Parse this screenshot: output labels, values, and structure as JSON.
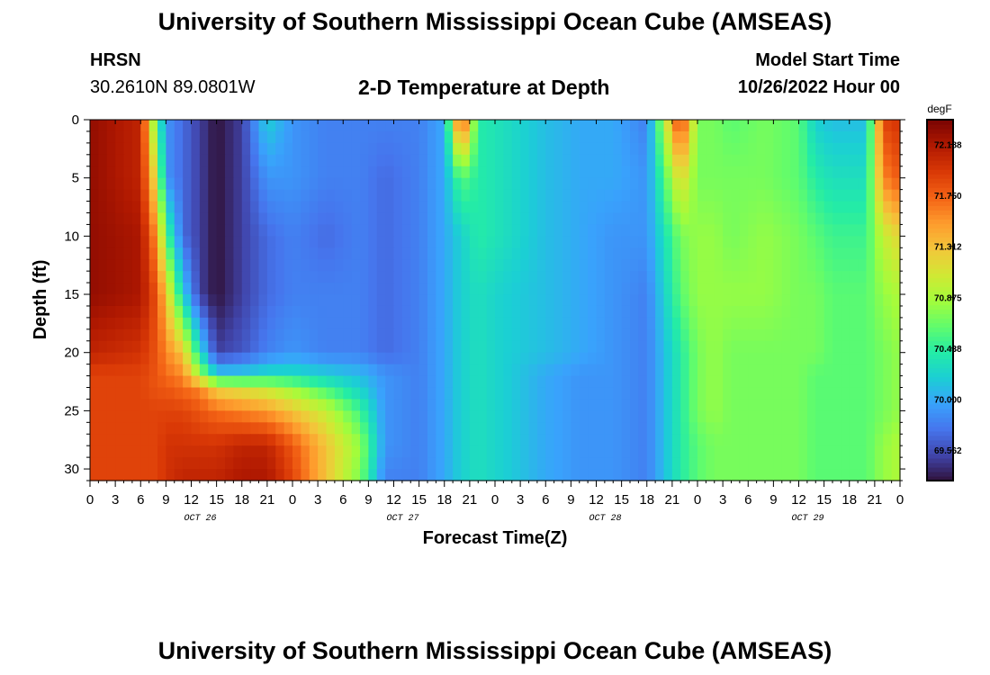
{
  "header": {
    "title": "University of Southern Mississippi Ocean Cube (AMSEAS)",
    "station_name": "HRSN",
    "station_coords": "30.2610N  89.0801W",
    "subtitle": "2-D Temperature at Depth",
    "model_start_label": "Model Start Time",
    "model_start_value": "10/26/2022 Hour 00"
  },
  "footer": {
    "title": "University of Southern Mississippi Ocean Cube (AMSEAS)"
  },
  "chart_data": {
    "type": "heatmap",
    "xlabel": "Forecast Time(Z)",
    "ylabel": "Depth (ft)",
    "x_range_hours": [
      0,
      96
    ],
    "x_tick_step_hours": 3,
    "x_tick_labels": [
      "0",
      "3",
      "6",
      "9",
      "12",
      "15",
      "18",
      "21",
      "0",
      "3",
      "6",
      "9",
      "12",
      "15",
      "18",
      "21",
      "0",
      "3",
      "6",
      "9",
      "12",
      "15",
      "18",
      "21",
      "0",
      "3",
      "6",
      "9",
      "12",
      "15",
      "18",
      "21",
      "0"
    ],
    "day_labels": [
      {
        "label": "OCT 26",
        "hour": 12
      },
      {
        "label": "OCT 27",
        "hour": 36
      },
      {
        "label": "OCT 28",
        "hour": 60
      },
      {
        "label": "OCT 29",
        "hour": 84
      }
    ],
    "y_range": [
      0,
      31
    ],
    "y_ticks": [
      0,
      5,
      10,
      15,
      20,
      25,
      30
    ],
    "y_inverted": true,
    "colorbar": {
      "units": "degF",
      "min": 69.3,
      "max": 72.4,
      "tick_values": [
        69.562,
        70.0,
        70.438,
        70.875,
        71.312,
        71.75,
        72.188
      ],
      "tick_labels": [
        "69.562",
        "70.000",
        "70.438",
        "70.875",
        "71.312",
        "71.750",
        "72.188"
      ],
      "colormap": [
        "#30123b",
        "#4145ab",
        "#4675ed",
        "#39a2fc",
        "#1bcfd4",
        "#24eca6",
        "#61fc6c",
        "#a4fc3b",
        "#d1e834",
        "#f3c63a",
        "#fe9b2d",
        "#f36315",
        "#d93806",
        "#b11901",
        "#7a0402"
      ]
    },
    "x_hours": [
      0,
      6,
      8,
      9,
      11,
      13,
      15,
      18,
      21,
      24,
      28,
      32,
      35,
      39,
      42,
      44,
      46,
      49,
      54,
      58,
      62,
      66,
      70,
      72,
      74,
      76,
      80,
      84,
      86,
      88,
      90,
      92,
      94,
      96
    ],
    "depths_ft": [
      0,
      5,
      10,
      15,
      20,
      22,
      23,
      25,
      28,
      31
    ],
    "temperature_degF": [
      [
        72.3,
        72.1,
        70.5,
        69.9,
        69.7,
        69.5,
        69.3,
        69.5,
        70.2,
        69.9,
        69.8,
        69.8,
        69.8,
        69.8,
        70.0,
        72.0,
        70.4,
        70.3,
        70.1,
        70.0,
        70.0,
        69.8,
        72.0,
        70.7,
        70.7,
        70.6,
        70.7,
        70.6,
        70.2,
        70.1,
        70.1,
        70.1,
        71.9,
        72.0
      ],
      [
        72.3,
        72.1,
        71.0,
        69.9,
        69.7,
        69.5,
        69.3,
        69.5,
        69.9,
        69.9,
        69.8,
        69.8,
        69.7,
        69.8,
        70.0,
        70.6,
        70.4,
        70.3,
        70.1,
        70.0,
        70.0,
        69.9,
        71.2,
        70.7,
        70.7,
        70.7,
        70.7,
        70.6,
        70.4,
        70.3,
        70.3,
        70.3,
        71.6,
        71.8
      ],
      [
        72.3,
        72.2,
        71.5,
        70.6,
        69.7,
        69.5,
        69.3,
        69.5,
        69.7,
        69.8,
        69.7,
        69.8,
        69.7,
        69.8,
        70.0,
        70.2,
        70.4,
        70.3,
        70.1,
        70.0,
        69.9,
        69.9,
        70.7,
        70.8,
        70.8,
        70.7,
        70.8,
        70.7,
        70.6,
        70.5,
        70.5,
        70.5,
        71.0,
        71.2
      ],
      [
        72.3,
        72.2,
        71.8,
        71.3,
        70.2,
        69.5,
        69.3,
        69.5,
        69.7,
        69.8,
        69.8,
        69.8,
        69.7,
        69.8,
        70.0,
        70.2,
        70.3,
        70.2,
        70.1,
        70.0,
        69.9,
        69.8,
        70.6,
        70.8,
        70.8,
        70.8,
        70.8,
        70.7,
        70.7,
        70.6,
        70.6,
        70.6,
        70.8,
        70.9
      ],
      [
        72.1,
        72.0,
        71.8,
        71.6,
        71.3,
        70.3,
        69.5,
        69.6,
        69.8,
        69.9,
        69.8,
        69.8,
        69.7,
        69.8,
        70.0,
        70.2,
        70.3,
        70.2,
        70.1,
        70.0,
        69.9,
        69.8,
        70.4,
        70.7,
        70.8,
        70.7,
        70.7,
        70.7,
        70.7,
        70.6,
        70.6,
        70.6,
        70.7,
        70.8
      ],
      [
        71.9,
        71.9,
        71.8,
        71.7,
        71.6,
        70.9,
        70.2,
        70.2,
        70.3,
        70.3,
        70.2,
        70.1,
        69.9,
        69.8,
        70.0,
        70.2,
        70.3,
        70.2,
        70.0,
        69.9,
        69.9,
        69.8,
        70.4,
        70.7,
        70.8,
        70.7,
        70.7,
        70.7,
        70.6,
        70.6,
        70.6,
        70.6,
        70.7,
        70.8
      ],
      [
        71.9,
        71.9,
        71.8,
        71.8,
        71.7,
        71.6,
        71.2,
        71.1,
        71.0,
        70.8,
        70.5,
        70.2,
        69.9,
        69.8,
        70.0,
        70.2,
        70.3,
        70.2,
        70.0,
        69.9,
        69.9,
        69.8,
        70.4,
        70.7,
        70.8,
        70.7,
        70.7,
        70.7,
        70.6,
        70.6,
        70.6,
        70.6,
        70.7,
        70.8
      ],
      [
        71.9,
        71.9,
        71.9,
        71.9,
        71.9,
        71.8,
        71.7,
        71.6,
        71.5,
        71.3,
        71.0,
        70.5,
        69.9,
        69.8,
        70.0,
        70.2,
        70.3,
        70.2,
        70.0,
        69.9,
        69.9,
        69.8,
        70.4,
        70.7,
        70.8,
        70.7,
        70.7,
        70.7,
        70.6,
        70.6,
        70.6,
        70.6,
        70.7,
        70.8
      ],
      [
        71.9,
        71.9,
        71.9,
        72.0,
        72.0,
        72.0,
        72.0,
        72.1,
        72.1,
        71.8,
        71.3,
        70.8,
        69.9,
        69.8,
        70.0,
        70.2,
        70.3,
        70.2,
        70.0,
        69.9,
        69.9,
        69.8,
        70.4,
        70.6,
        70.7,
        70.7,
        70.7,
        70.7,
        70.6,
        70.6,
        70.6,
        70.6,
        70.8,
        70.9
      ],
      [
        71.9,
        71.9,
        71.9,
        72.0,
        72.1,
        72.1,
        72.1,
        72.2,
        72.2,
        71.9,
        71.3,
        70.7,
        69.8,
        69.8,
        70.0,
        70.2,
        70.3,
        70.2,
        70.0,
        69.9,
        69.9,
        69.8,
        70.4,
        70.6,
        70.7,
        70.7,
        70.7,
        70.7,
        70.6,
        70.6,
        70.6,
        70.6,
        70.8,
        70.9
      ]
    ]
  }
}
